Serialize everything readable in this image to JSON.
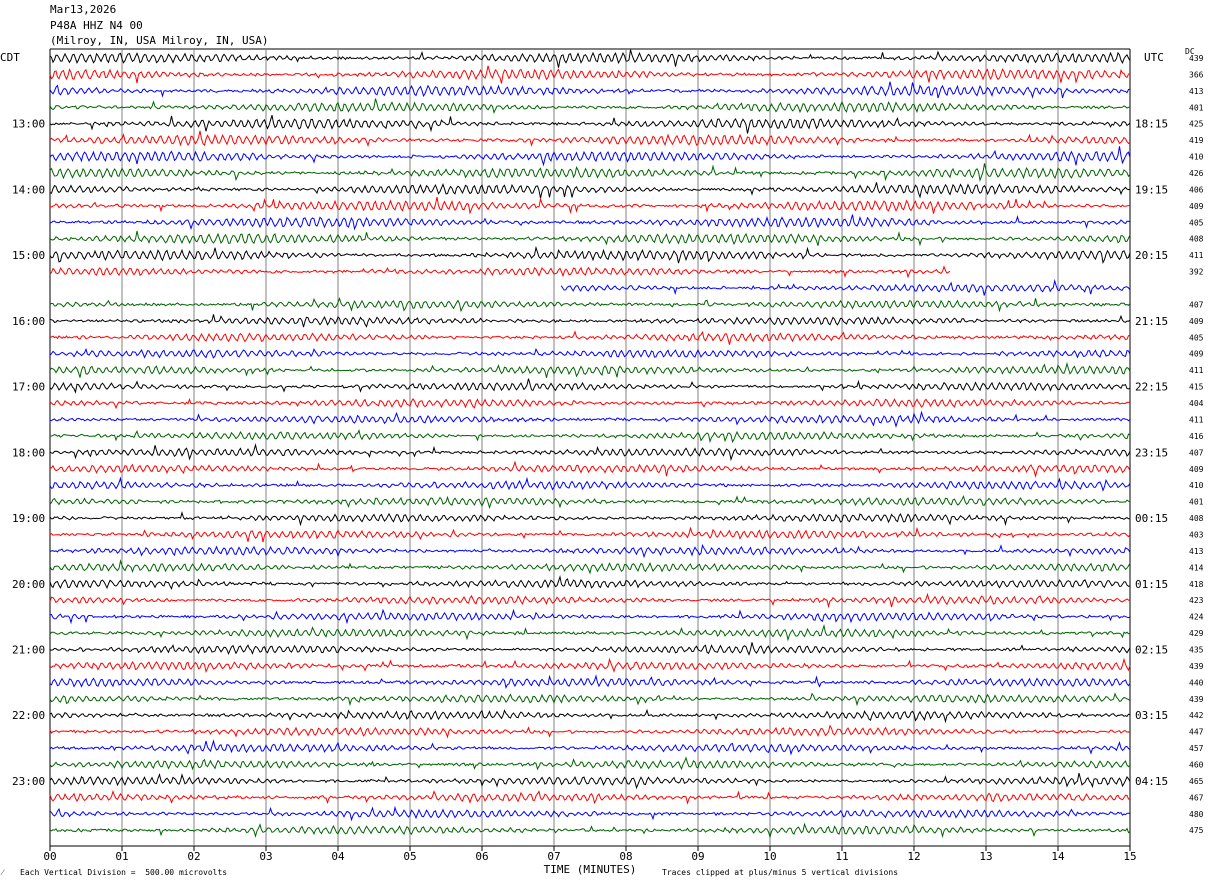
{
  "header": {
    "date": "Mar13,2026",
    "station": "P48A HHZ N4 00",
    "location": "(Milroy, IN, USA Milroy, IN, USA)"
  },
  "left_label": "CDT",
  "right_label": "UTC",
  "dc_label": "DC",
  "footer": {
    "scale_note": "Each Vertical Division =  500.00 microvolts",
    "clip_note": "Traces clipped at plus/minus 5 vertical divisions",
    "mark": "⁄"
  },
  "colors": {
    "black": "#000000",
    "red": "#ff0000",
    "blue": "#0000ff",
    "green": "#006400",
    "grid": "#808080"
  },
  "chart_data": {
    "type": "line",
    "title": "",
    "xlabel": "TIME (MINUTES)",
    "x_range": [
      0,
      15
    ],
    "x_ticks": [
      "00",
      "01",
      "02",
      "03",
      "04",
      "05",
      "06",
      "07",
      "08",
      "09",
      "10",
      "11",
      "12",
      "13",
      "14",
      "15"
    ],
    "rows_per_hour": 4,
    "series_colors": [
      "black",
      "red",
      "blue",
      "green"
    ],
    "left_hour_labels": [
      "13:00",
      "14:00",
      "15:00",
      "16:00",
      "17:00",
      "18:00",
      "19:00",
      "20:00",
      "21:00",
      "22:00",
      "23:00"
    ],
    "right_hour_labels": [
      "18:15",
      "19:15",
      "20:15",
      "21:15",
      "22:15",
      "23:15",
      "00:15",
      "01:15",
      "02:15",
      "03:15",
      "04:15"
    ],
    "first_labeled_row": 4,
    "dc_offsets": [
      "439",
      "366",
      "413",
      "401",
      "425",
      "419",
      "410",
      "426",
      "406",
      "409",
      "405",
      "408",
      "411",
      "392",
      "",
      "407",
      "409",
      "405",
      "409",
      "411",
      "415",
      "404",
      "411",
      "416",
      "407",
      "409",
      "410",
      "401",
      "408",
      "403",
      "413",
      "414",
      "418",
      "423",
      "424",
      "429",
      "435",
      "439",
      "440",
      "439",
      "442",
      "447",
      "457",
      "460",
      "465",
      "467",
      "480",
      "475"
    ],
    "gaps": [
      {
        "row": 13,
        "end_min": 12.5
      },
      {
        "row": 14,
        "start_min": 7.1
      }
    ]
  }
}
